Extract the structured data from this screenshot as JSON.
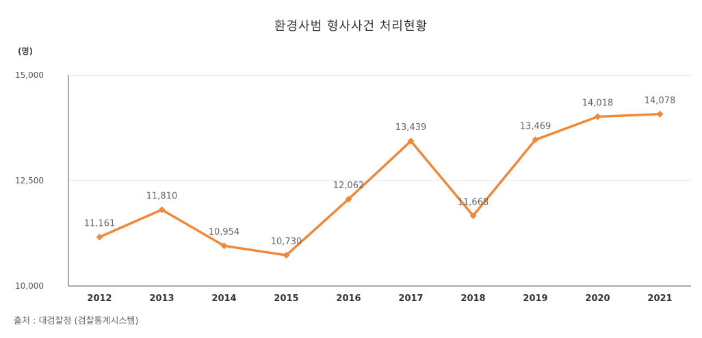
{
  "chart_data": {
    "type": "line",
    "title": "환경사범 형사사건 처리현황",
    "unit": "(명)",
    "source": "출처 : 대검찰청 (검찰통계시스템)",
    "categories": [
      "2012",
      "2013",
      "2014",
      "2015",
      "2016",
      "2017",
      "2018",
      "2019",
      "2020",
      "2021"
    ],
    "values": [
      11161,
      11810,
      10954,
      10730,
      12062,
      13439,
      11668,
      13469,
      14018,
      14078
    ],
    "value_labels": [
      "11,161",
      "11,810",
      "10,954",
      "10,730",
      "12,062",
      "13,439",
      "11,668",
      "13,469",
      "14,018",
      "14,078"
    ],
    "yticks": [
      10000,
      12500,
      15000
    ],
    "ytick_labels": [
      "10,000",
      "12,500",
      "15,000"
    ],
    "ylim": [
      10000,
      15000
    ],
    "grid": true,
    "line_color": "#f0883a"
  }
}
